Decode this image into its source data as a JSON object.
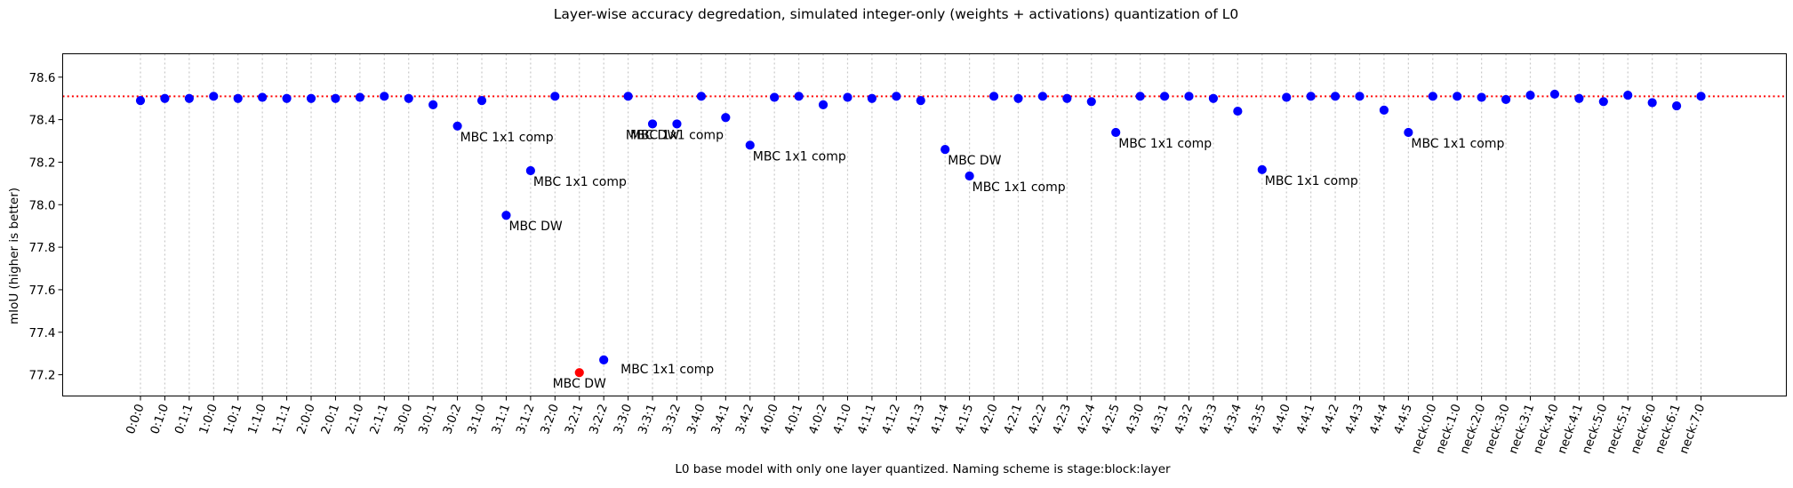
{
  "chart_data": {
    "type": "scatter",
    "title": "Layer-wise accuracy degredation, simulated integer-only (weights + activations) quantization of L0",
    "xlabel": "L0 base model with only one layer quantized. Naming scheme is stage:block:layer",
    "ylabel": "mIoU (higher is better)",
    "ylim": [
      77.1,
      78.71
    ],
    "yticks": [
      77.2,
      77.4,
      77.6,
      77.8,
      78.0,
      78.2,
      78.4,
      78.6
    ],
    "ytick_labels": [
      "77.2",
      "77.4",
      "77.6",
      "77.8",
      "78.0",
      "78.2",
      "78.4",
      "78.6"
    ],
    "baseline": 78.51,
    "baseline_color": "#ff0000",
    "point_color": "#0000ff",
    "highlight_color": "#ff0000",
    "grid": "vertical-dotted",
    "categories": [
      "0:0:0",
      "0:1:0",
      "0:1:1",
      "1:0:0",
      "1:0:1",
      "1:1:0",
      "1:1:1",
      "2:0:0",
      "2:0:1",
      "2:1:0",
      "2:1:1",
      "3:0:0",
      "3:0:1",
      "3:0:2",
      "3:1:0",
      "3:1:1",
      "3:1:2",
      "3:2:0",
      "3:2:1",
      "3:2:2",
      "3:3:0",
      "3:3:1",
      "3:3:2",
      "3:4:0",
      "3:4:1",
      "3:4:2",
      "4:0:0",
      "4:0:1",
      "4:0:2",
      "4:1:0",
      "4:1:1",
      "4:1:2",
      "4:1:3",
      "4:1:4",
      "4:1:5",
      "4:2:0",
      "4:2:1",
      "4:2:2",
      "4:2:3",
      "4:2:4",
      "4:2:5",
      "4:3:0",
      "4:3:1",
      "4:3:2",
      "4:3:3",
      "4:3:4",
      "4:3:5",
      "4:4:0",
      "4:4:1",
      "4:4:2",
      "4:4:3",
      "4:4:4",
      "4:4:5",
      "neck:0:0",
      "neck:1:0",
      "neck:2:0",
      "neck:3:0",
      "neck:3:1",
      "neck:4:0",
      "neck:4:1",
      "neck:5:0",
      "neck:5:1",
      "neck:6:0",
      "neck:6:1",
      "neck:7:0"
    ],
    "values": [
      78.49,
      78.5,
      78.5,
      78.51,
      78.5,
      78.505,
      78.5,
      78.5,
      78.5,
      78.505,
      78.51,
      78.5,
      78.47,
      78.37,
      78.49,
      77.95,
      78.16,
      78.51,
      77.21,
      77.27,
      78.51,
      78.38,
      78.38,
      78.51,
      78.41,
      78.28,
      78.505,
      78.51,
      78.47,
      78.505,
      78.5,
      78.51,
      78.49,
      78.26,
      78.135,
      78.51,
      78.5,
      78.51,
      78.5,
      78.485,
      78.34,
      78.51,
      78.51,
      78.51,
      78.5,
      78.44,
      78.165,
      78.505,
      78.51,
      78.51,
      78.51,
      78.445,
      78.34,
      78.51,
      78.51,
      78.505,
      78.495,
      78.515,
      78.52,
      78.5,
      78.485,
      78.515,
      78.48,
      78.465,
      78.51
    ],
    "highlight_index": 18,
    "annotations": [
      {
        "index": 13,
        "text": "MBC 1x1 comp",
        "pos": "below-right"
      },
      {
        "index": 15,
        "text": "MBC DW",
        "pos": "below-right"
      },
      {
        "index": 16,
        "text": "MBC 1x1 comp",
        "pos": "below-right"
      },
      {
        "index": 18,
        "text": "MBC DW",
        "pos": "below"
      },
      {
        "index": 19,
        "text": "MBC 1x1 comp",
        "pos": "right"
      },
      {
        "index": 21,
        "text": "MBC DW",
        "pos": "below"
      },
      {
        "index": 22,
        "text": "MBC 1x1 comp",
        "pos": "below"
      },
      {
        "index": 25,
        "text": "MBC 1x1 comp",
        "pos": "below-right"
      },
      {
        "index": 33,
        "text": "MBC DW",
        "pos": "below-right"
      },
      {
        "index": 34,
        "text": "MBC 1x1 comp",
        "pos": "below-right"
      },
      {
        "index": 40,
        "text": "MBC 1x1 comp",
        "pos": "below-right"
      },
      {
        "index": 46,
        "text": "MBC 1x1 comp",
        "pos": "below-right"
      },
      {
        "index": 52,
        "text": "MBC 1x1 comp",
        "pos": "below-right"
      }
    ]
  }
}
